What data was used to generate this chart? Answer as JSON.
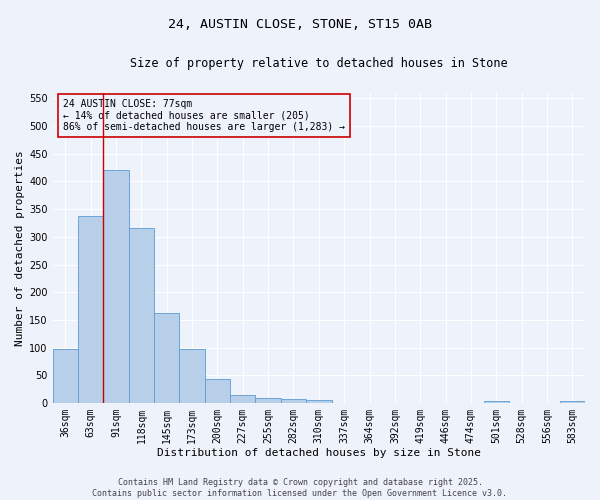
{
  "title": "24, AUSTIN CLOSE, STONE, ST15 0AB",
  "subtitle": "Size of property relative to detached houses in Stone",
  "xlabel": "Distribution of detached houses by size in Stone",
  "ylabel": "Number of detached properties",
  "categories": [
    "36sqm",
    "63sqm",
    "91sqm",
    "118sqm",
    "145sqm",
    "173sqm",
    "200sqm",
    "227sqm",
    "255sqm",
    "282sqm",
    "310sqm",
    "337sqm",
    "364sqm",
    "392sqm",
    "419sqm",
    "446sqm",
    "474sqm",
    "501sqm",
    "528sqm",
    "556sqm",
    "583sqm"
  ],
  "values": [
    97,
    338,
    420,
    315,
    163,
    97,
    44,
    15,
    10,
    7,
    5,
    0,
    0,
    0,
    0,
    0,
    0,
    4,
    0,
    0,
    4
  ],
  "bar_color": "#b8cfea",
  "bar_edge_color": "#5b9bd5",
  "vline_x": 1.5,
  "vline_color": "#cc0000",
  "annotation_text": "24 AUSTIN CLOSE: 77sqm\n← 14% of detached houses are smaller (205)\n86% of semi-detached houses are larger (1,283) →",
  "annotation_box_color": "#cc0000",
  "ylim": [
    0,
    560
  ],
  "yticks": [
    0,
    50,
    100,
    150,
    200,
    250,
    300,
    350,
    400,
    450,
    500,
    550
  ],
  "background_color": "#eef2fb",
  "grid_color": "#ffffff",
  "footer_text": "Contains HM Land Registry data © Crown copyright and database right 2025.\nContains public sector information licensed under the Open Government Licence v3.0.",
  "title_fontsize": 9.5,
  "subtitle_fontsize": 8.5,
  "xlabel_fontsize": 8,
  "ylabel_fontsize": 8,
  "tick_fontsize": 7,
  "annotation_fontsize": 7,
  "footer_fontsize": 6
}
